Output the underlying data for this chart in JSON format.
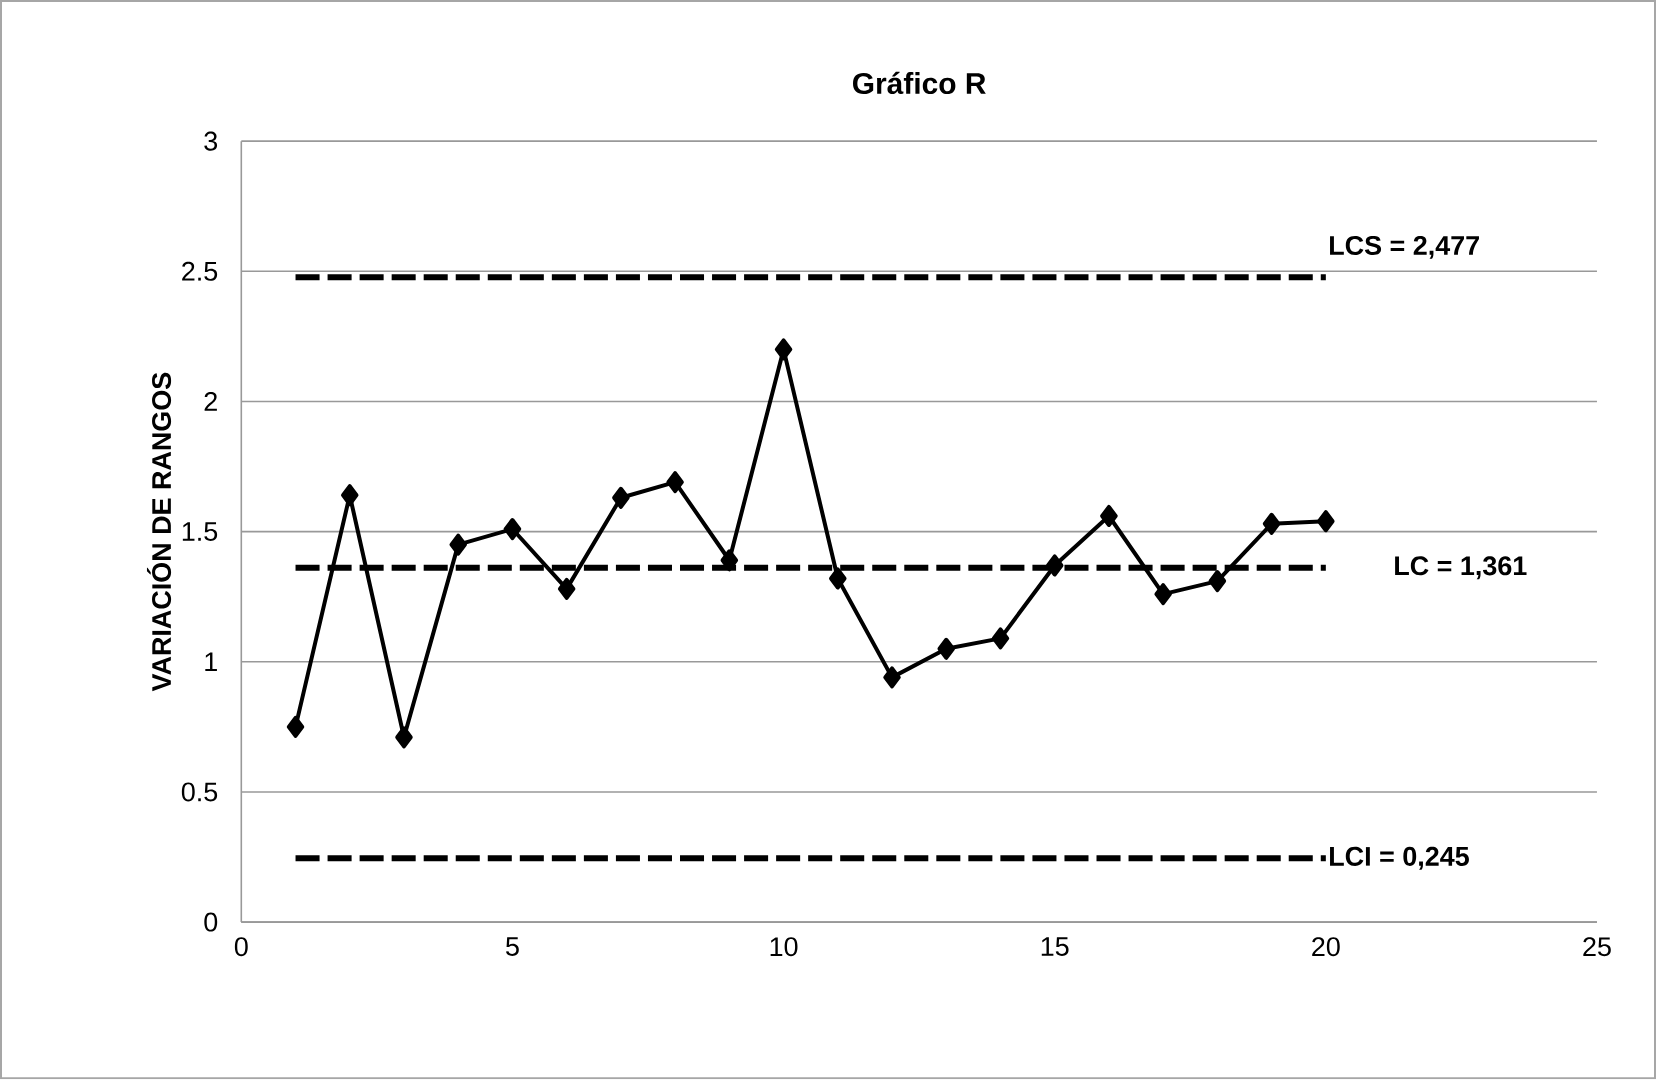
{
  "chart_data": {
    "type": "line",
    "title": "Gráfico R",
    "ylabel": "VARIACIÓN DE RANGOS",
    "x": [
      1,
      2,
      3,
      4,
      5,
      6,
      7,
      8,
      9,
      10,
      11,
      12,
      13,
      14,
      15,
      16,
      17,
      18,
      19,
      20
    ],
    "series": [
      {
        "color": "#000000",
        "values": [
          0.75,
          1.64,
          0.71,
          1.45,
          1.51,
          1.28,
          1.63,
          1.69,
          1.39,
          2.2,
          1.32,
          0.94,
          1.05,
          1.09,
          1.37,
          1.56,
          1.26,
          1.31,
          1.53,
          1.54
        ]
      }
    ],
    "marker": "diamond",
    "line_style": "solid",
    "xlim": [
      0,
      25
    ],
    "xticks": [
      0,
      5,
      10,
      15,
      20,
      25
    ],
    "ylim": [
      0,
      3
    ],
    "yticks": [
      0,
      0.5,
      1,
      1.5,
      2,
      2.5,
      3
    ],
    "grid": "y",
    "ref_lines": [
      {
        "axis": "y",
        "value": 2.477,
        "label": "LCS = 2,477",
        "color": "#000000",
        "line_style": "dashed"
      },
      {
        "axis": "y",
        "value": 1.361,
        "label": "LC = 1,361",
        "color": "#000000",
        "line_style": "dashed"
      },
      {
        "axis": "y",
        "value": 0.245,
        "label": "LCI = 0,245",
        "color": "#000000",
        "line_style": "dashed"
      }
    ]
  }
}
